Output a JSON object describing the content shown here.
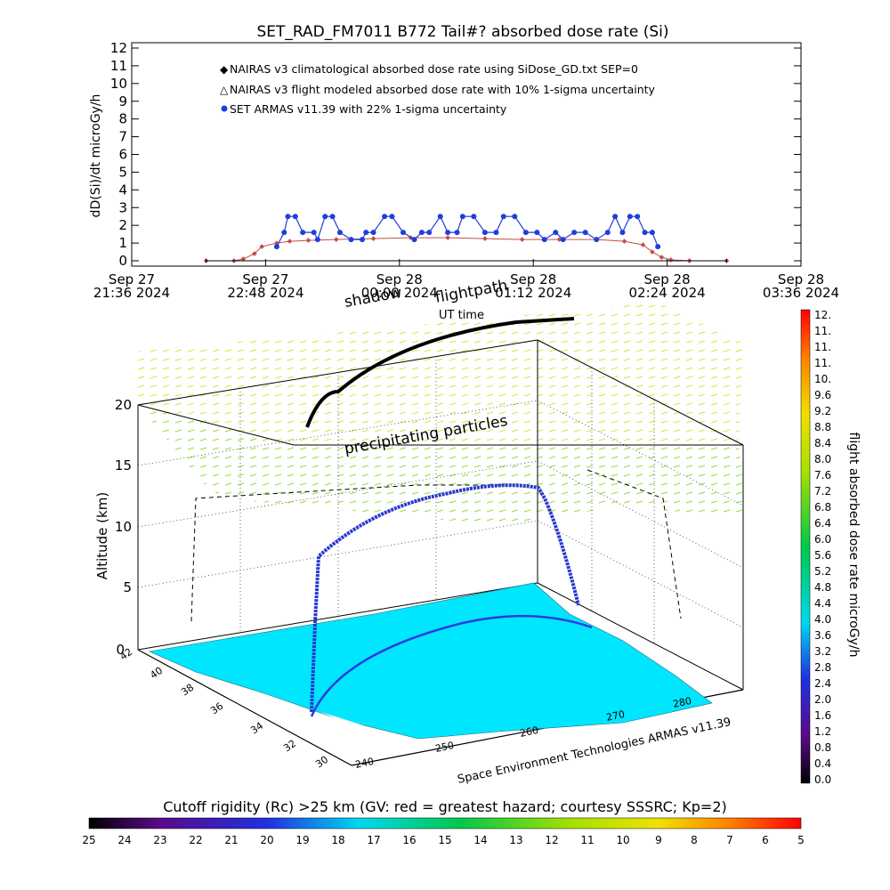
{
  "figure": {
    "title": "SET_RAD_FM7011  B772 Tail#? absorbed dose rate (Si)",
    "legend": [
      {
        "label": "NAIRAS v3 climatological absorbed dose rate using SiDose_GD.txt SEP=0",
        "color": "#c0504d"
      },
      {
        "label": "NAIRAS v3 flight modeled absorbed dose rate with 10% 1-sigma uncertainty",
        "color": "#000000"
      },
      {
        "label": "SET ARMAS v11.39 with 22% 1-sigma uncertainty",
        "color": "#1f3fd8"
      }
    ],
    "map3d": {
      "flightpath_label": "flightpath",
      "shadow_label": "shadow",
      "ut_label": "UT time",
      "precip_label": "precipitating particles",
      "zlabel": "Altitude (km)",
      "z_ticks": [
        "0",
        "5",
        "10",
        "15",
        "20"
      ],
      "lat_ticks": [
        "42",
        "40",
        "38",
        "36",
        "34",
        "32",
        "30"
      ],
      "lon_ticks": [
        "240",
        "250",
        "260",
        "270",
        "280"
      ],
      "credit": "Space Environment Technologies ARMAS v11.39"
    },
    "dose_colorbar": {
      "label": "flight absorbed dose rate microGy/h",
      "ticks": [
        "0.0",
        "0.4",
        "0.8",
        "1.2",
        "1.6",
        "2.0",
        "2.4",
        "2.8",
        "3.2",
        "3.6",
        "4.0",
        "4.4",
        "4.8",
        "5.2",
        "5.6",
        "6.0",
        "6.4",
        "6.8",
        "7.2",
        "7.6",
        "8.0",
        "8.4",
        "8.8",
        "9.2",
        "9.6",
        "10.",
        "11.",
        "11.",
        "11.",
        "12."
      ]
    },
    "rigidity_colorbar": {
      "label": "Cutoff rigidity (Rc) >25 km (GV: red = greatest hazard; courtesy SSSRC; Kp=2)",
      "ticks": [
        "25",
        "24",
        "23",
        "22",
        "21",
        "20",
        "19",
        "18",
        "17",
        "16",
        "15",
        "14",
        "13",
        "12",
        "11",
        "10",
        "9",
        "8",
        "7",
        "6",
        "5"
      ]
    }
  },
  "chart_data": {
    "type": "line",
    "title": "SET_RAD_FM7011  B772 Tail#? absorbed dose rate (Si)",
    "ylabel": "dD(Si)/dt microGy/h",
    "xlabel": "",
    "ylim": [
      0,
      12
    ],
    "yticks": [
      "0",
      "1",
      "2",
      "3",
      "4",
      "5",
      "6",
      "7",
      "8",
      "9",
      "10",
      "11",
      "12"
    ],
    "x_ticks": [
      {
        "day": "Sep 27",
        "time": "21:36 2024"
      },
      {
        "day": "Sep 27",
        "time": "22:48 2024"
      },
      {
        "day": "Sep 28",
        "time": "00:00 2024"
      },
      {
        "day": "Sep 28",
        "time": "01:12 2024"
      },
      {
        "day": "Sep 28",
        "time": "02:24 2024"
      },
      {
        "day": "Sep 28",
        "time": "03:36 2024"
      }
    ],
    "x_range_minutes": [
      0,
      360
    ],
    "series": [
      {
        "name": "NAIRAS v3 climatological absorbed dose rate using SiDose_GD.txt SEP=0",
        "color": "#c0504d",
        "x": [
          40,
          55,
          60,
          66,
          70,
          78,
          85,
          95,
          110,
          130,
          150,
          170,
          190,
          210,
          230,
          250,
          265,
          275,
          280,
          285,
          290,
          300,
          320
        ],
        "y": [
          0,
          0,
          0.1,
          0.4,
          0.8,
          1.0,
          1.1,
          1.15,
          1.2,
          1.25,
          1.3,
          1.3,
          1.25,
          1.2,
          1.2,
          1.2,
          1.1,
          0.9,
          0.5,
          0.2,
          0.05,
          0,
          0
        ]
      },
      {
        "name": "NAIRAS v3 flight modeled absorbed dose rate with 10% 1-sigma uncertainty",
        "color": "#000000",
        "x": [
          40,
          320
        ],
        "y": [
          0,
          0
        ]
      },
      {
        "name": "SET ARMAS v11.39 with 22% 1-sigma uncertainty",
        "color": "#1f3fd8",
        "x": [
          78,
          82,
          84,
          88,
          92,
          98,
          100,
          104,
          108,
          112,
          118,
          124,
          126,
          130,
          136,
          140,
          146,
          152,
          156,
          160,
          166,
          170,
          175,
          178,
          184,
          190,
          196,
          200,
          206,
          212,
          218,
          222,
          228,
          232,
          238,
          244,
          250,
          256,
          260,
          264,
          268,
          272,
          276,
          280,
          283
        ],
        "y": [
          0.8,
          1.6,
          2.5,
          2.5,
          1.6,
          1.6,
          1.2,
          2.5,
          2.5,
          1.6,
          1.2,
          1.2,
          1.6,
          1.6,
          2.5,
          2.5,
          1.6,
          1.2,
          1.6,
          1.6,
          2.5,
          1.6,
          1.6,
          2.5,
          2.5,
          1.6,
          1.6,
          2.5,
          2.5,
          1.6,
          1.6,
          1.2,
          1.6,
          1.2,
          1.6,
          1.6,
          1.2,
          1.6,
          2.5,
          1.6,
          2.5,
          2.5,
          1.6,
          1.6,
          0.8
        ]
      }
    ],
    "grid": false,
    "legend_position": "top-left"
  }
}
